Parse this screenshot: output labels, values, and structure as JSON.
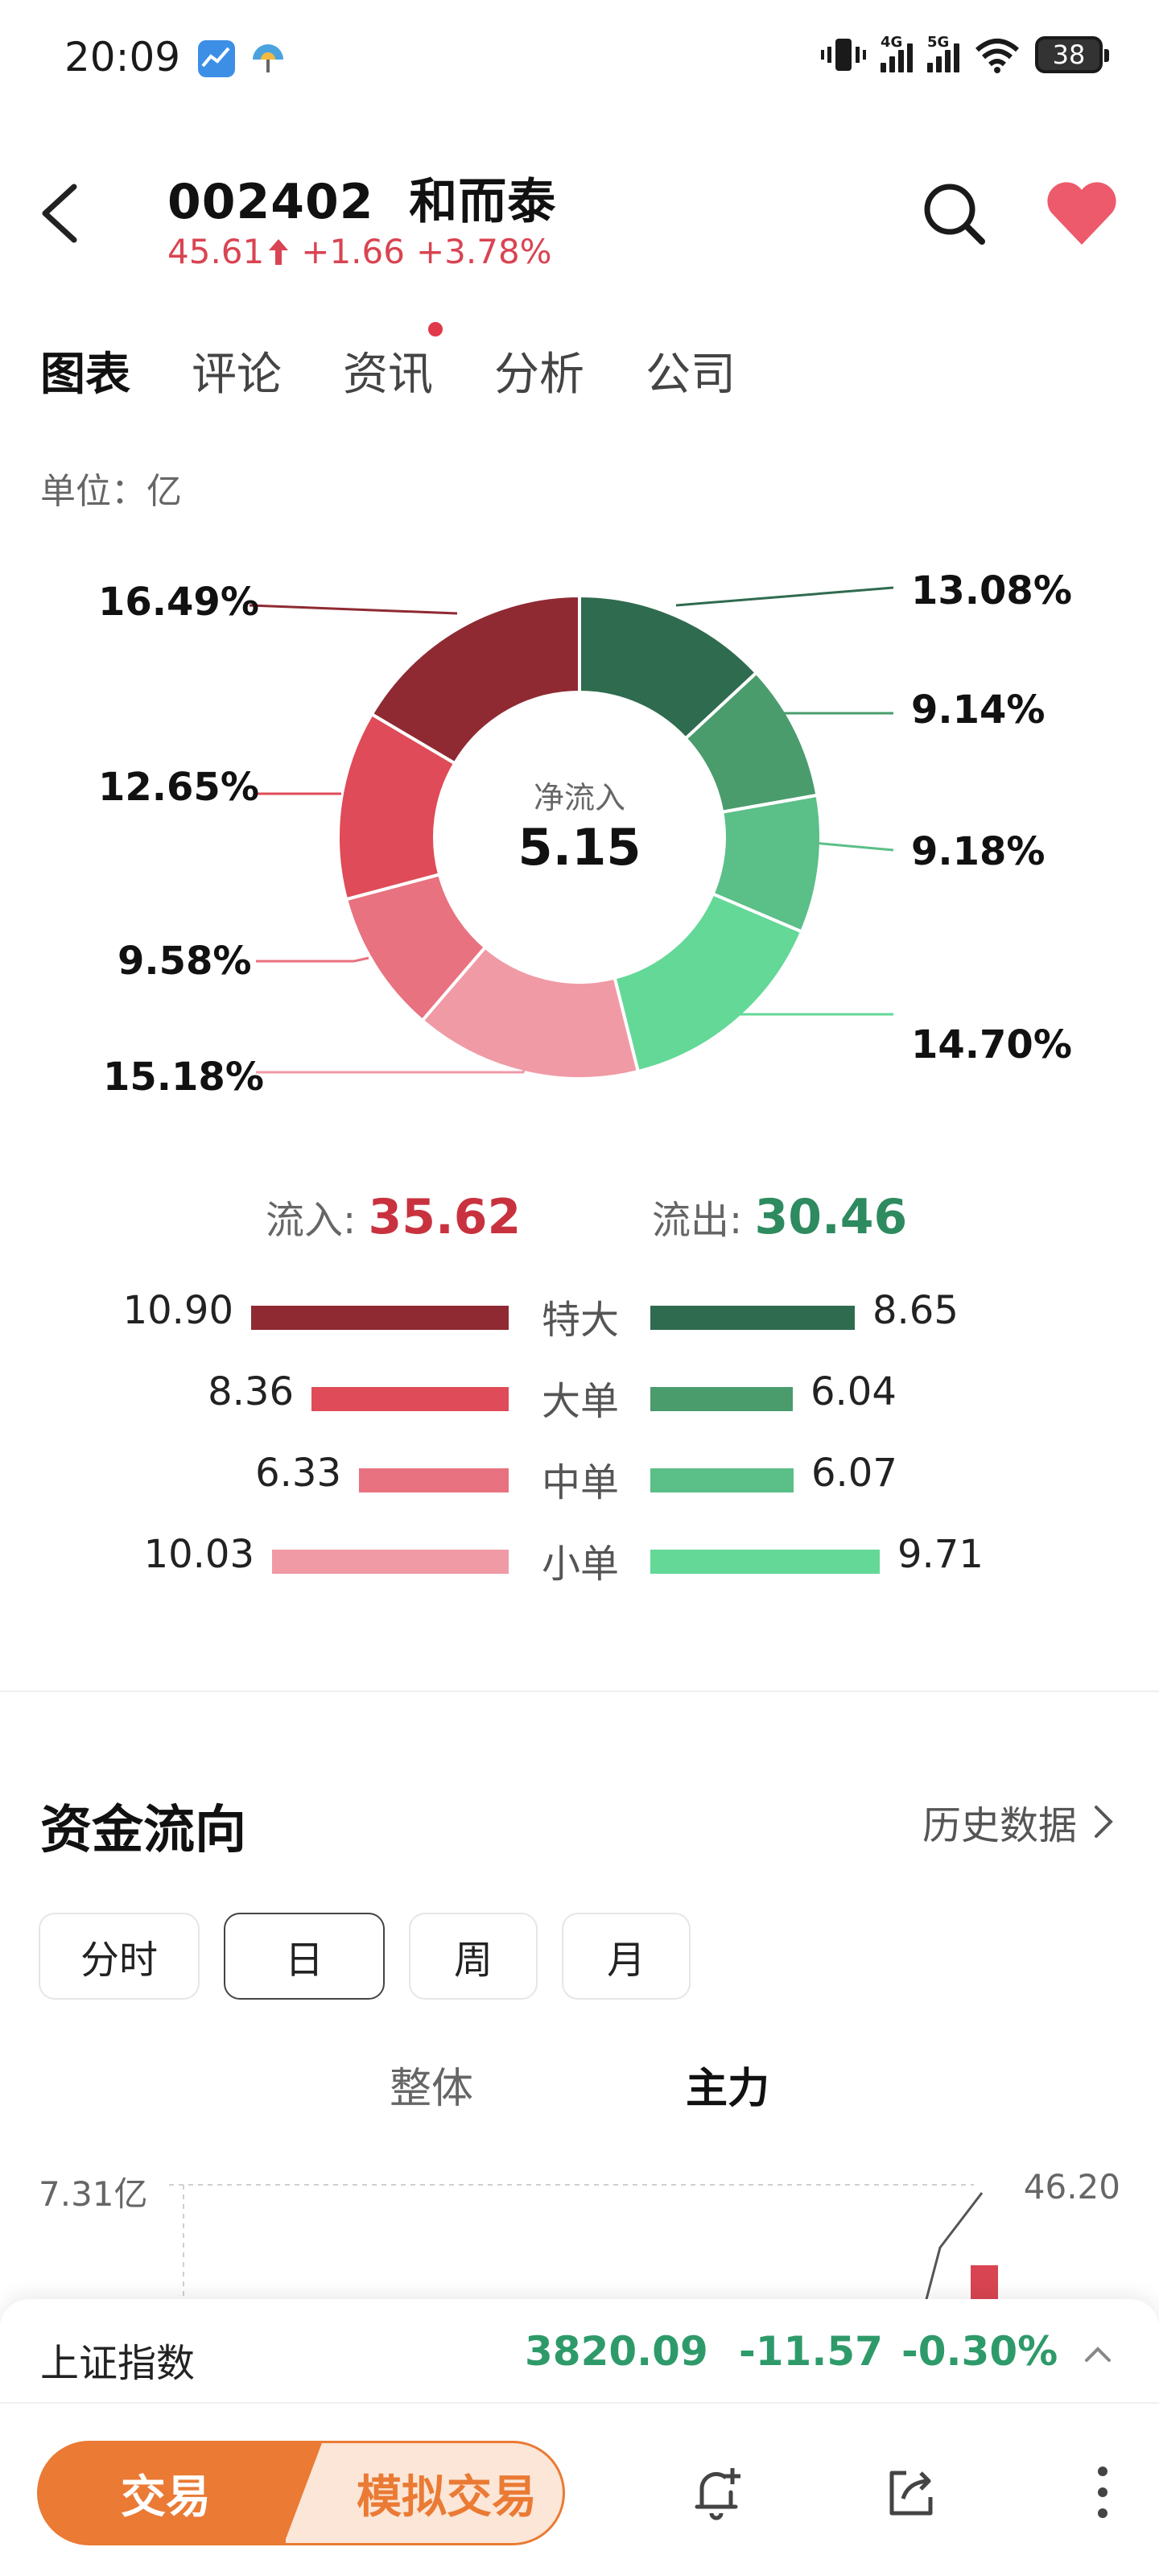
{
  "status_bar": {
    "time": "20:09",
    "network_1": "4G",
    "network_2": "5G",
    "battery": "38"
  },
  "header": {
    "code": "002402",
    "name": "和而泰",
    "price": "45.61",
    "change": "+1.66",
    "change_pct": "+3.78%",
    "up_color": "#d94452"
  },
  "tabs": [
    {
      "label": "图表",
      "active": true
    },
    {
      "label": "评论",
      "active": false
    },
    {
      "label": "资讯",
      "active": false,
      "badge": true
    },
    {
      "label": "分析",
      "active": false
    },
    {
      "label": "公司",
      "active": false
    }
  ],
  "unit_label": "单位：亿",
  "chart_data": {
    "type": "pie",
    "center_label": "净流入",
    "center_value": "5.15",
    "slices": [
      {
        "label": "13.08%",
        "value": 13.08,
        "color": "#2f6b4f"
      },
      {
        "label": "9.14%",
        "value": 9.14,
        "color": "#4a9c6d"
      },
      {
        "label": "9.18%",
        "value": 9.18,
        "color": "#5bbf88"
      },
      {
        "label": "14.70%",
        "value": 14.7,
        "color": "#63d897"
      },
      {
        "label": "15.18%",
        "value": 15.18,
        "color": "#f09aa5"
      },
      {
        "label": "9.58%",
        "value": 9.58,
        "color": "#e8727f"
      },
      {
        "label": "12.65%",
        "value": 12.65,
        "color": "#df4b58"
      },
      {
        "label": "16.49%",
        "value": 16.49,
        "color": "#8f2a33"
      }
    ]
  },
  "flow": {
    "inflow_label": "流入:",
    "inflow_value": "35.62",
    "outflow_label": "流出:",
    "outflow_value": "30.46",
    "rows": [
      {
        "label": "特大",
        "in": "10.90",
        "out": "8.65",
        "in_color": "#8f2a33",
        "out_color": "#2f6b4f"
      },
      {
        "label": "大单",
        "in": "8.36",
        "out": "6.04",
        "in_color": "#df4b58",
        "out_color": "#4a9c6d"
      },
      {
        "label": "中单",
        "in": "6.33",
        "out": "6.07",
        "in_color": "#e8727f",
        "out_color": "#5bbf88"
      },
      {
        "label": "小单",
        "in": "10.03",
        "out": "9.71",
        "in_color": "#f09aa5",
        "out_color": "#63d897"
      }
    ]
  },
  "fund_flow": {
    "title": "资金流向",
    "history_link": "历史数据",
    "periods": [
      "分时",
      "日",
      "周",
      "月"
    ],
    "active_period": "日",
    "sub_tabs": [
      "整体",
      "主力"
    ],
    "active_sub_tab": "主力",
    "axis_left_top": "7.31亿",
    "axis_right_top": "46.20"
  },
  "index_bar": {
    "name": "上证指数",
    "value": "3820.09",
    "change": "-11.57",
    "change_pct": "-0.30%",
    "down_color": "#2e9a6a"
  },
  "bottom_actions": {
    "trade": "交易",
    "sim_trade": "模拟交易",
    "icons": [
      "bell-add-icon",
      "share-icon",
      "more-icon"
    ]
  }
}
